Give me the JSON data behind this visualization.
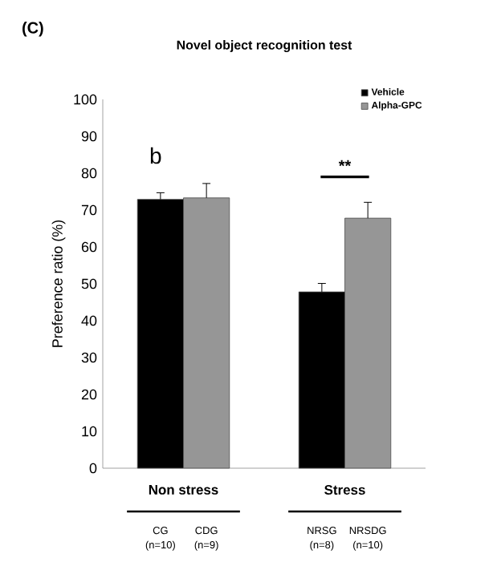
{
  "chart_data": {
    "type": "bar",
    "title": "Novel object recognition test",
    "ylabel": "Preference ratio (%)",
    "categories": [
      "Non stress",
      "Stress"
    ],
    "series": [
      {
        "name": "Vehicle",
        "color": "#000000",
        "values": [
          72.9,
          47.8
        ],
        "errors": [
          1.8,
          2.3
        ]
      },
      {
        "name": "Alpha-GPC",
        "color": "#969696",
        "values": [
          73.3,
          67.8
        ],
        "errors": [
          3.9,
          4.3
        ]
      }
    ],
    "ylim": [
      0,
      100
    ],
    "yticks": [
      0,
      10,
      20,
      30,
      40,
      50,
      60,
      70,
      80,
      90,
      100
    ],
    "grid": false,
    "legend": "top right",
    "annotations": [
      "(C)",
      "b",
      "**",
      "CG (n=10)",
      "CDG (n=9)",
      "NRSG (n=8)",
      "NRSDG (n=10)"
    ]
  }
}
